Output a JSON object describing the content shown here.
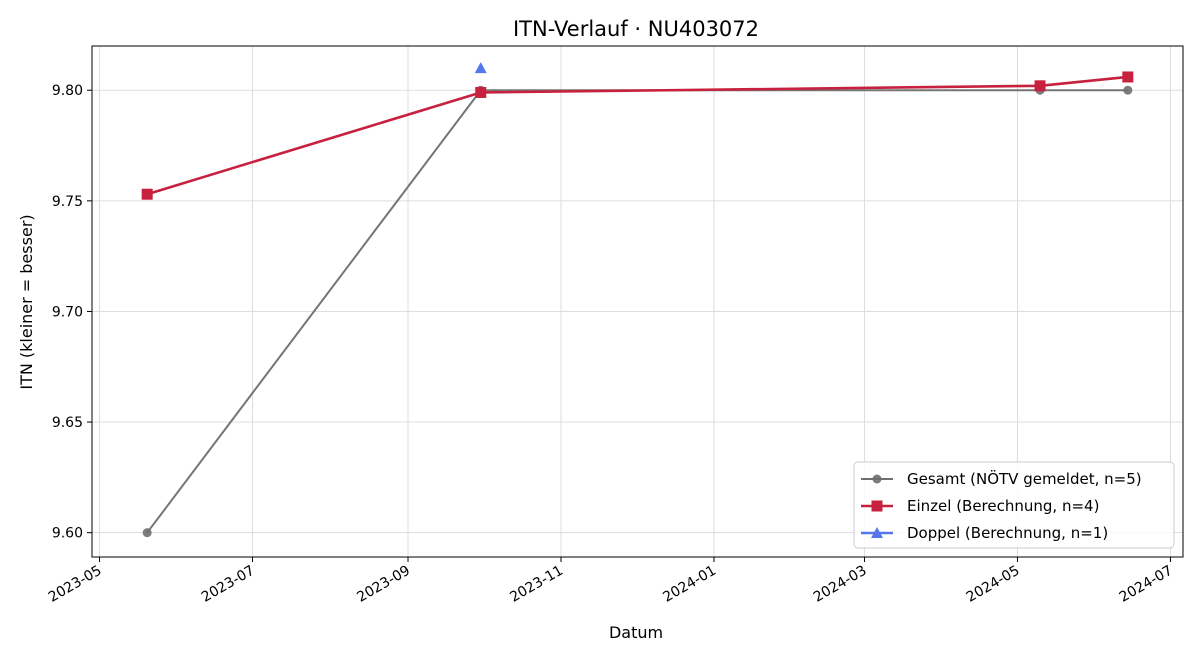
{
  "chart_data": {
    "type": "line",
    "title": "ITN-Verlauf · NU403072",
    "xlabel": "Datum",
    "ylabel": "ITN  (kleiner = besser)",
    "x_axis_type": "date",
    "xlim": [
      "2023-04-28",
      "2024-07-06"
    ],
    "ylim": [
      9.589,
      9.82
    ],
    "x_ticks": [
      "2023-05",
      "2023-07",
      "2023-09",
      "2023-11",
      "2024-01",
      "2024-03",
      "2024-05",
      "2024-07"
    ],
    "y_ticks": [
      9.6,
      9.65,
      9.7,
      9.75,
      9.8
    ],
    "grid": true,
    "legend_position": "bottom-right",
    "series": [
      {
        "name": "Gesamt (NÖTV gemeldet, n=5)",
        "color": "#6e6e6e",
        "marker": "circle",
        "points": [
          {
            "x": "2023-05-20",
            "y": 9.6
          },
          {
            "x": "2023-09-30",
            "y": 9.8
          },
          {
            "x": "2024-05-10",
            "y": 9.8
          },
          {
            "x": "2024-06-14",
            "y": 9.8
          }
        ]
      },
      {
        "name": "Einzel (Berechnung, n=4)",
        "color": "#c8203f",
        "marker": "square",
        "points": [
          {
            "x": "2023-05-20",
            "y": 9.753
          },
          {
            "x": "2023-09-30",
            "y": 9.799
          },
          {
            "x": "2024-05-10",
            "y": 9.802
          },
          {
            "x": "2024-06-14",
            "y": 9.806
          }
        ]
      },
      {
        "name": "Doppel (Berechnung, n=1)",
        "color": "#5577ee",
        "marker": "triangle",
        "points": [
          {
            "x": "2023-09-30",
            "y": 9.81
          }
        ]
      }
    ]
  }
}
